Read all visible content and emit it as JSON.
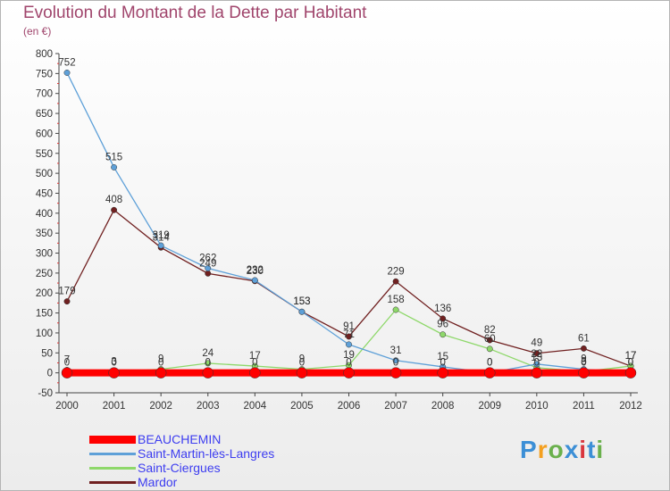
{
  "title": "Evolution du Montant de la Dette par Habitant",
  "subtitle": "(en €)",
  "logo": {
    "text": "Proxiti",
    "colors": [
      "#3c8fd6",
      "#f4a020",
      "#6ab04c",
      "#3c8fd6",
      "#d9363e",
      "#3c8fd6",
      "#6ab04c"
    ]
  },
  "chart_data": {
    "type": "line",
    "x": [
      "2000",
      "2001",
      "2002",
      "2003",
      "2004",
      "2005",
      "2006",
      "2007",
      "2008",
      "2009",
      "2010",
      "2011",
      "2012"
    ],
    "ylim": [
      -50,
      800
    ],
    "yticks": [
      800,
      750,
      700,
      650,
      600,
      550,
      500,
      450,
      400,
      350,
      300,
      250,
      200,
      150,
      100,
      50,
      0,
      -50
    ],
    "grid": "none",
    "legend_position": "bottom-left",
    "series": [
      {
        "name": "BEAUCHEMIN",
        "color": "#ff0000",
        "thick": true,
        "values": [
          0,
          0,
          0,
          0,
          0,
          0,
          0,
          0,
          0,
          0,
          0,
          0,
          0
        ],
        "labels": [
          "0",
          "0",
          "0",
          "0",
          "0",
          "0",
          "0",
          "0",
          "0",
          "0",
          "0",
          "0",
          "0"
        ]
      },
      {
        "name": "Saint-Martin-lès-Langres",
        "color": "#5ea0d8",
        "values": [
          752,
          515,
          319,
          262,
          232,
          153,
          71,
          31,
          15,
          0,
          22,
          9,
          0
        ],
        "labels": [
          "752",
          "515",
          "319",
          "262",
          "232",
          "153",
          "71",
          "31",
          "15",
          "0",
          "22",
          "9",
          "0"
        ]
      },
      {
        "name": "Saint-Ciergues",
        "color": "#8ed86a",
        "values": [
          7,
          3,
          9,
          24,
          17,
          9,
          19,
          158,
          96,
          60,
          13,
          3,
          17
        ],
        "labels": [
          "7",
          "3",
          "9",
          "24",
          "17",
          "9",
          "19",
          "158",
          "96",
          "60",
          "13",
          "3",
          "17"
        ]
      },
      {
        "name": "Mardor",
        "color": "#702020",
        "values": [
          179,
          408,
          314,
          249,
          230,
          153,
          91,
          229,
          136,
          82,
          49,
          61,
          17
        ],
        "labels": [
          "179",
          "408",
          "314",
          "249",
          "230",
          "153",
          "91",
          "229",
          "136",
          "82",
          "49",
          "61",
          "17"
        ]
      }
    ]
  }
}
